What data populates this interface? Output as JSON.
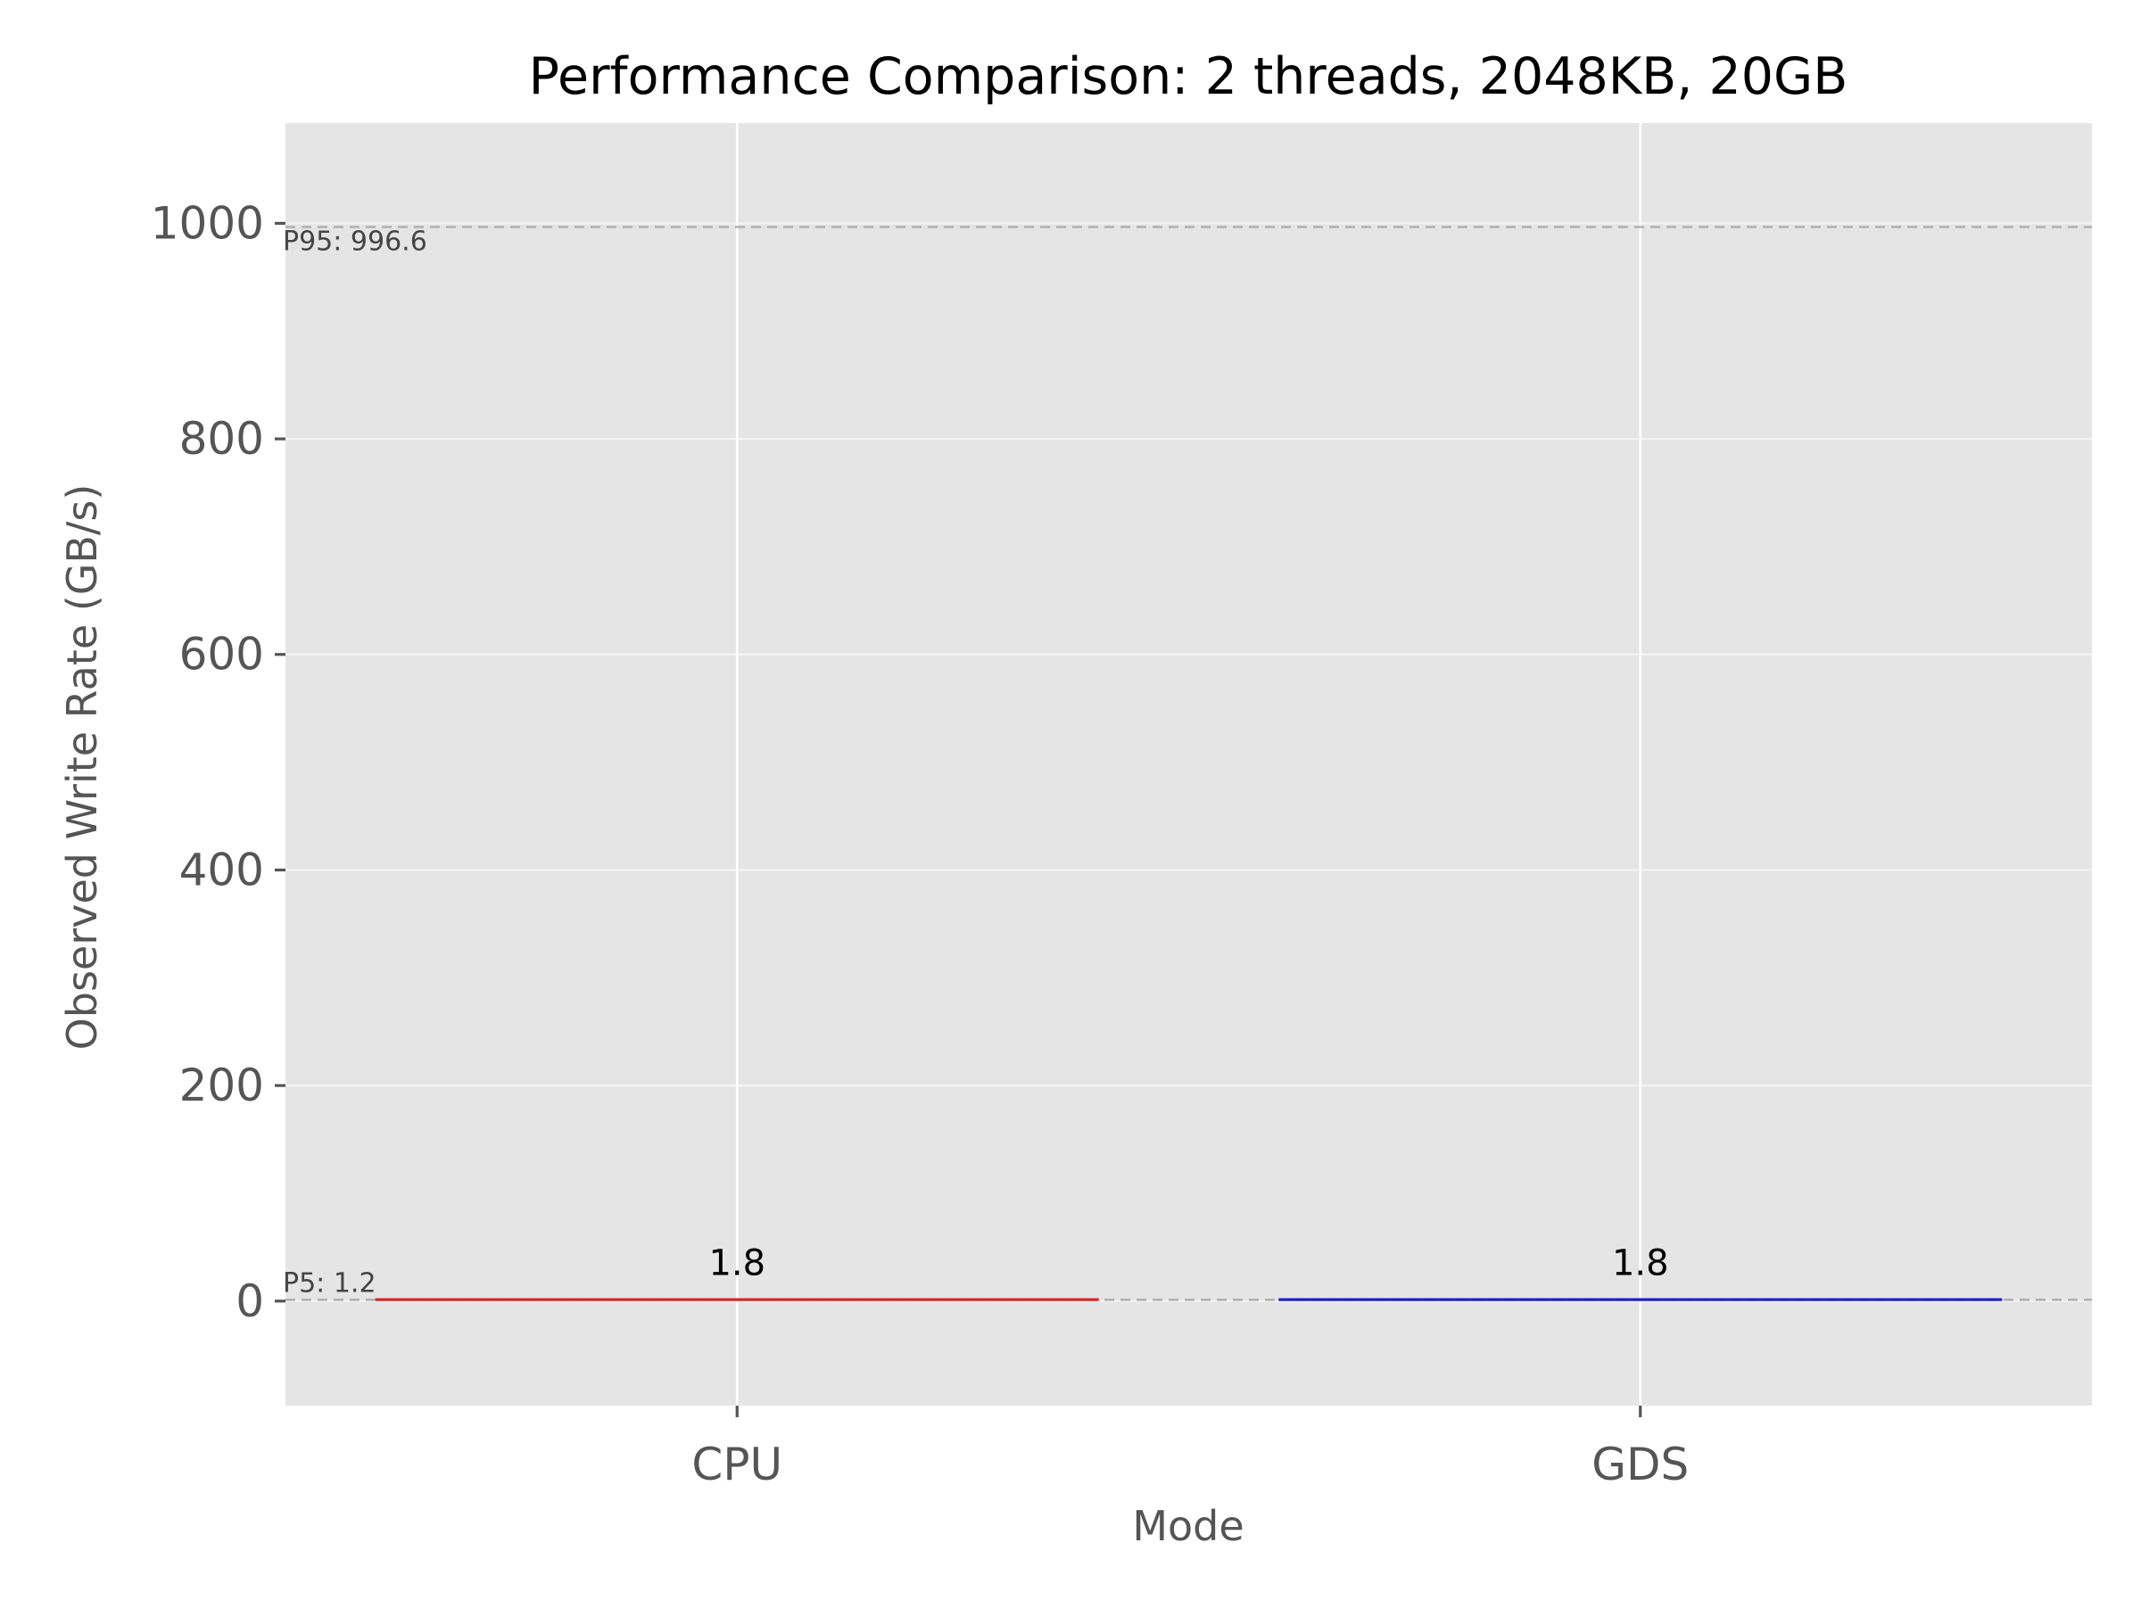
{
  "chart_data": {
    "type": "bar",
    "title": "Performance Comparison: 2 threads, 2048KB, 20GB",
    "xlabel": "Mode",
    "ylabel": "Observed Write Rate (GB/s)",
    "categories": [
      "CPU",
      "GDS"
    ],
    "values": [
      1.8,
      1.8
    ],
    "data_labels": [
      "1.8",
      "1.8"
    ],
    "bar_colors": [
      "#d62728",
      "#1f1fcc"
    ],
    "ylim": [
      -97,
      1093
    ],
    "yticks": [
      0,
      200,
      400,
      600,
      800,
      1000
    ],
    "ytick_labels": [
      "0",
      "200",
      "400",
      "600",
      "800",
      "1000"
    ],
    "reference_lines": [
      {
        "label": "P95: 996.6",
        "value": 996.6
      },
      {
        "label": "P5: 1.2",
        "value": 1.2
      }
    ],
    "grid": true,
    "legend": "none",
    "colors": {
      "plot_background": "#e5e5e5",
      "grid": "#ffffff",
      "reference_line": "#b0b0b0",
      "tick": "#555555"
    }
  }
}
